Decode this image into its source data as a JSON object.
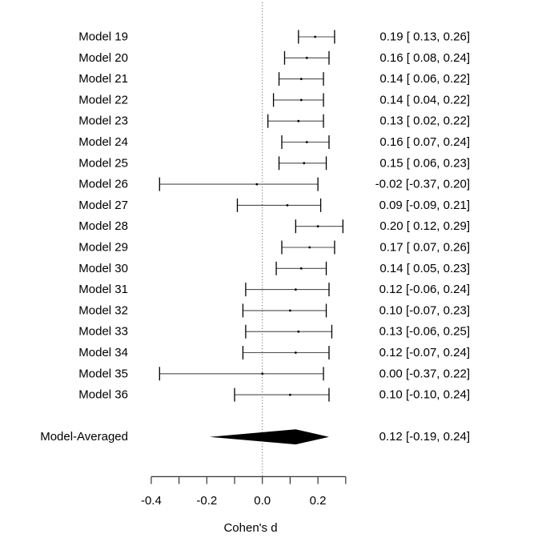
{
  "chart_data": {
    "type": "forest",
    "title": "",
    "xlabel": {
      "regular": "Cohen's ",
      "italic": "d"
    },
    "x_axis": {
      "range": [
        -0.4,
        0.3
      ],
      "minor_ticks": [
        -0.4,
        -0.3,
        -0.2,
        -0.1,
        0.0,
        0.1,
        0.2,
        0.3
      ],
      "tick_labels": [
        {
          "value": -0.4,
          "label": "-0.4"
        },
        {
          "value": -0.2,
          "label": "-0.2"
        },
        {
          "value": 0.0,
          "label": "0.0"
        },
        {
          "value": 0.2,
          "label": "0.2"
        }
      ],
      "reference_line": 0.0,
      "grid": false
    },
    "rows": [
      {
        "label": "Model 19",
        "estimate": 0.19,
        "ci_lower": 0.13,
        "ci_upper": 0.26,
        "annotation": "0.19 [ 0.13, 0.26]"
      },
      {
        "label": "Model 20",
        "estimate": 0.16,
        "ci_lower": 0.08,
        "ci_upper": 0.24,
        "annotation": "0.16 [ 0.08, 0.24]"
      },
      {
        "label": "Model 21",
        "estimate": 0.14,
        "ci_lower": 0.06,
        "ci_upper": 0.22,
        "annotation": "0.14 [ 0.06, 0.22]"
      },
      {
        "label": "Model 22",
        "estimate": 0.14,
        "ci_lower": 0.04,
        "ci_upper": 0.22,
        "annotation": "0.14 [ 0.04, 0.22]"
      },
      {
        "label": "Model 23",
        "estimate": 0.13,
        "ci_lower": 0.02,
        "ci_upper": 0.22,
        "annotation": "0.13 [ 0.02, 0.22]"
      },
      {
        "label": "Model 24",
        "estimate": 0.16,
        "ci_lower": 0.07,
        "ci_upper": 0.24,
        "annotation": "0.16 [ 0.07, 0.24]"
      },
      {
        "label": "Model 25",
        "estimate": 0.15,
        "ci_lower": 0.06,
        "ci_upper": 0.23,
        "annotation": "0.15 [ 0.06, 0.23]"
      },
      {
        "label": "Model 26",
        "estimate": -0.02,
        "ci_lower": -0.37,
        "ci_upper": 0.2,
        "annotation": "-0.02 [-0.37, 0.20]"
      },
      {
        "label": "Model 27",
        "estimate": 0.09,
        "ci_lower": -0.09,
        "ci_upper": 0.21,
        "annotation": "0.09 [-0.09, 0.21]"
      },
      {
        "label": "Model 28",
        "estimate": 0.2,
        "ci_lower": 0.12,
        "ci_upper": 0.29,
        "annotation": "0.20 [ 0.12, 0.29]"
      },
      {
        "label": "Model 29",
        "estimate": 0.17,
        "ci_lower": 0.07,
        "ci_upper": 0.26,
        "annotation": "0.17 [ 0.07, 0.26]"
      },
      {
        "label": "Model 30",
        "estimate": 0.14,
        "ci_lower": 0.05,
        "ci_upper": 0.23,
        "annotation": "0.14 [ 0.05, 0.23]"
      },
      {
        "label": "Model 31",
        "estimate": 0.12,
        "ci_lower": -0.06,
        "ci_upper": 0.24,
        "annotation": "0.12 [-0.06, 0.24]"
      },
      {
        "label": "Model 32",
        "estimate": 0.1,
        "ci_lower": -0.07,
        "ci_upper": 0.23,
        "annotation": "0.10 [-0.07, 0.23]"
      },
      {
        "label": "Model 33",
        "estimate": 0.13,
        "ci_lower": -0.06,
        "ci_upper": 0.25,
        "annotation": "0.13 [-0.06, 0.25]"
      },
      {
        "label": "Model 34",
        "estimate": 0.12,
        "ci_lower": -0.07,
        "ci_upper": 0.24,
        "annotation": "0.12 [-0.07, 0.24]"
      },
      {
        "label": "Model 35",
        "estimate": 0.0,
        "ci_lower": -0.37,
        "ci_upper": 0.22,
        "annotation": "0.00 [-0.37, 0.22]"
      },
      {
        "label": "Model 36",
        "estimate": 0.1,
        "ci_lower": -0.1,
        "ci_upper": 0.24,
        "annotation": "0.10 [-0.10, 0.24]"
      }
    ],
    "summary": {
      "label": "Model-Averaged",
      "estimate": 0.12,
      "ci_lower": -0.19,
      "ci_upper": 0.24,
      "annotation": "0.12 [-0.19, 0.24]",
      "shape": "diamond"
    }
  },
  "colors": {
    "background": "#ffffff",
    "whisker_line": "#4d4d4d",
    "whisker_cap": "#000000",
    "estimate_dot": "#000000",
    "reference_line": "#4d4d4d",
    "axis": "#333333",
    "diamond": "#000000",
    "text": "#000000"
  }
}
